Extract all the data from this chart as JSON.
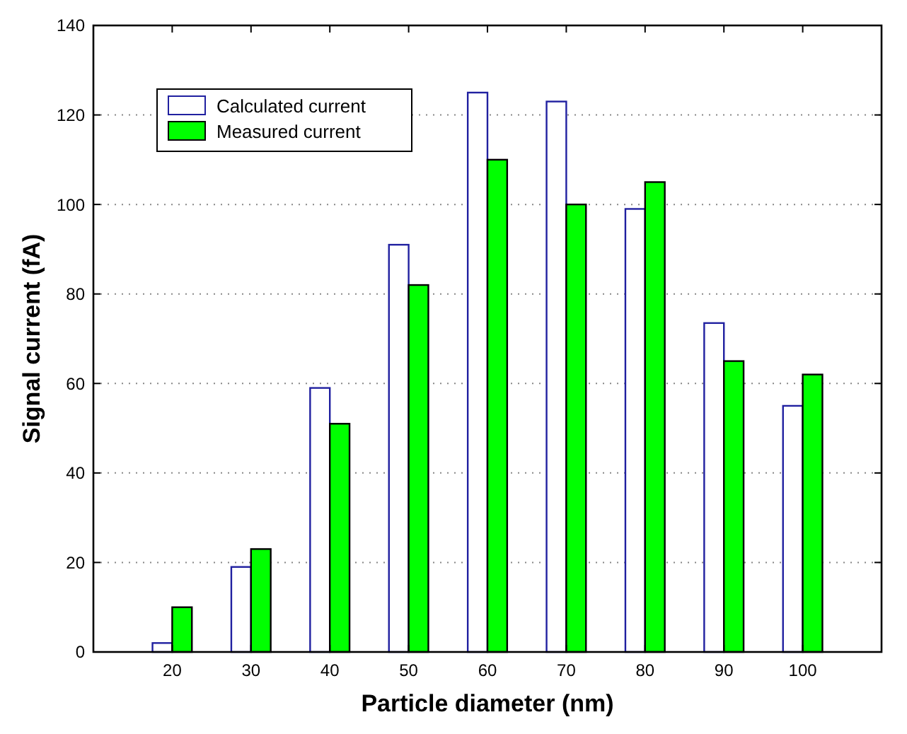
{
  "chart_data": {
    "type": "bar",
    "xlabel": "Particle diameter (nm)",
    "ylabel": "Signal current (fA)",
    "categories": [
      "20",
      "30",
      "40",
      "50",
      "60",
      "70",
      "80",
      "90",
      "100"
    ],
    "series": [
      {
        "name": "Calculated current",
        "color": "#ffffff",
        "values": [
          2,
          19,
          59,
          91,
          125,
          123,
          99,
          73.5,
          55
        ]
      },
      {
        "name": "Measured current",
        "color": "#00ff00",
        "values": [
          10,
          23,
          51,
          82,
          110,
          100,
          105,
          65,
          62
        ]
      }
    ],
    "ylim": [
      0,
      140
    ],
    "yticks": [
      0,
      20,
      40,
      60,
      80,
      100,
      120,
      140
    ],
    "grid": "y",
    "legend": "top left"
  }
}
